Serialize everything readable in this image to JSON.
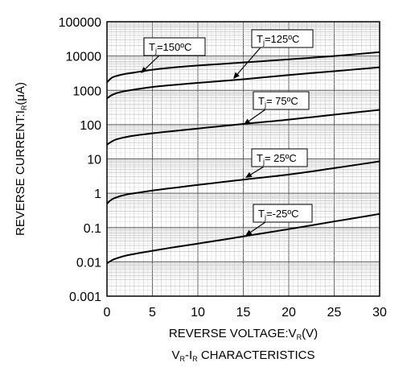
{
  "chart_data": {
    "type": "line",
    "title": "",
    "caption": {
      "main": "V",
      "sub1": "R",
      "mid": "-I",
      "sub2": "R",
      "tail": " CHARACTERISTICS"
    },
    "xlabel": {
      "main": "REVERSE VOLTAGE:V",
      "sub": "R",
      "tail": "(V)"
    },
    "ylabel": {
      "main": "REVERSE CURRENT:I",
      "sub": "R",
      "tail": "(μA)"
    },
    "xlim": [
      0,
      30
    ],
    "ylim": [
      0.001,
      100000
    ],
    "yscale": "log",
    "grid": true,
    "x_ticks": [
      0,
      5,
      10,
      15,
      20,
      25,
      30
    ],
    "x_tick_labels": [
      "0",
      "5",
      "10",
      "15",
      "20",
      "25",
      "30"
    ],
    "y_ticks": [
      0.001,
      0.01,
      0.1,
      1,
      10,
      100,
      1000,
      10000,
      100000
    ],
    "y_tick_labels": [
      "0.001",
      "0.01",
      "0.1",
      "1",
      "10",
      "100",
      "1000",
      "10000",
      "100000"
    ],
    "series": [
      {
        "name": "Tj=150ºC",
        "label": {
          "main": "T",
          "sub": "j",
          "tail": "=150ºC"
        },
        "x": [
          0,
          0.5,
          1,
          2,
          3,
          5,
          7.5,
          10,
          15,
          20,
          25,
          30
        ],
        "y": [
          1700,
          2300,
          2600,
          3000,
          3300,
          4000,
          4700,
          5300,
          6500,
          8000,
          10000,
          13000
        ]
      },
      {
        "name": "Tj=125ºC",
        "label": {
          "main": "T",
          "sub": "j",
          "tail": "=125ºC"
        },
        "x": [
          0,
          0.5,
          1,
          2,
          3,
          5,
          7.5,
          10,
          15,
          20,
          25,
          30
        ],
        "y": [
          580,
          720,
          820,
          950,
          1050,
          1250,
          1450,
          1650,
          2100,
          2800,
          3600,
          4700
        ]
      },
      {
        "name": "Tj= 75ºC",
        "label": {
          "main": "T",
          "sub": "j",
          "tail": "= 75ºC"
        },
        "x": [
          0,
          0.5,
          1,
          2,
          3,
          5,
          7.5,
          10,
          15,
          20,
          25,
          30
        ],
        "y": [
          26,
          32,
          37,
          43,
          48,
          56,
          66,
          77,
          105,
          140,
          195,
          270
        ]
      },
      {
        "name": "Tj= 25ºC",
        "label": {
          "main": "T",
          "sub": "j",
          "tail": "= 25ºC"
        },
        "x": [
          0,
          0.5,
          1,
          2,
          3,
          5,
          7.5,
          10,
          15,
          20,
          25,
          30
        ],
        "y": [
          0.5,
          0.65,
          0.75,
          0.9,
          1.0,
          1.2,
          1.45,
          1.75,
          2.5,
          3.5,
          5.4,
          8.5
        ]
      },
      {
        "name": "Tj=-25ºC",
        "label": {
          "main": "T",
          "sub": "j",
          "tail": "=-25ºC"
        },
        "x": [
          0,
          0.5,
          1,
          2,
          3,
          5,
          7.5,
          10,
          15,
          20,
          25,
          30
        ],
        "y": [
          0.009,
          0.011,
          0.0125,
          0.015,
          0.017,
          0.021,
          0.027,
          0.034,
          0.055,
          0.09,
          0.15,
          0.25
        ]
      }
    ]
  }
}
